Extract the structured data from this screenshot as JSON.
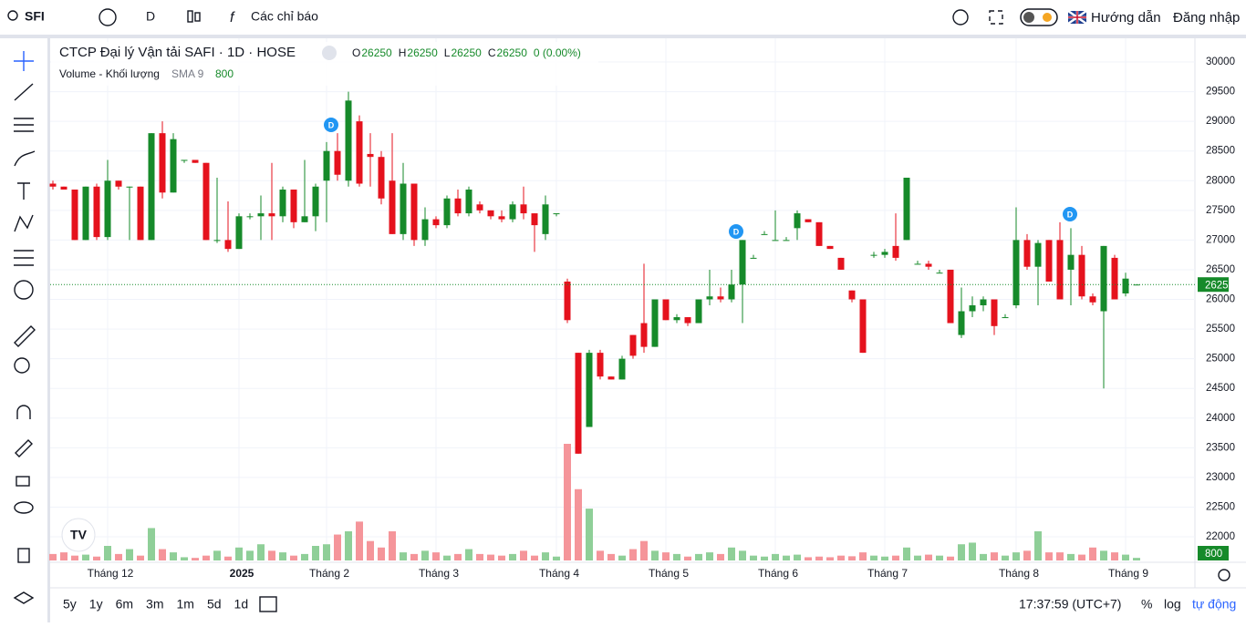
{
  "header": {
    "symbol": "SFI",
    "interval": "D",
    "indicators": "Các chỉ báo",
    "guide": "Hướng dẫn",
    "login": "Đăng nhập"
  },
  "chart_data": {
    "type": "candlestick",
    "title": "CTCP Đại lý Vận tải SAFI · 1D · HOSE",
    "ohlc_labels": [
      "O",
      "H",
      "L",
      "C"
    ],
    "change": "0 (0.00%)",
    "volume_title": "Volume - Khối lượng",
    "volume_sma": "SMA 9",
    "up_color": "#168a2a",
    "down_color": "#e5121d",
    "up_volume_color": "#8fcf98",
    "down_volume_color": "#f5959a",
    "events": [
      "D",
      "D",
      "D"
    ],
    "categories": [
      null,
      null,
      null,
      null,
      null,
      "Tháng 12",
      null,
      null,
      null,
      null,
      null,
      null,
      null,
      null,
      null,
      null,
      null,
      "2025",
      null,
      null,
      null,
      null,
      null,
      null,
      null,
      "Tháng 2",
      null,
      null,
      null,
      null,
      null,
      null,
      null,
      null,
      null,
      "Tháng 3",
      null,
      null,
      null,
      null,
      null,
      null,
      null,
      null,
      null,
      null,
      "Tháng 4",
      null,
      null,
      null,
      null,
      null,
      null,
      null,
      null,
      null,
      "Tháng 5",
      null,
      null,
      null,
      null,
      null,
      null,
      null,
      null,
      null,
      "Tháng 6",
      null,
      null,
      null,
      null,
      null,
      null,
      null,
      null,
      null,
      "Tháng 7",
      null,
      null,
      null,
      null,
      null,
      null,
      null,
      null,
      null,
      null,
      null,
      "Tháng 8",
      null,
      null,
      null,
      null,
      null,
      null,
      null,
      null,
      null,
      "Tháng 9",
      null
    ],
    "ohlc": [
      [
        27950,
        28000,
        27850,
        27900
      ],
      [
        27900,
        27900,
        27850,
        27850
      ],
      [
        27850,
        27850,
        27000,
        27000
      ],
      [
        27000,
        27900,
        27000,
        27900
      ],
      [
        27900,
        27950,
        27000,
        27050
      ],
      [
        27050,
        28350,
        27000,
        28000
      ],
      [
        28000,
        28000,
        27850,
        27900
      ],
      [
        27900,
        27900,
        27000,
        27900
      ],
      [
        27900,
        27900,
        27000,
        27000
      ],
      [
        27000,
        28800,
        27000,
        28800
      ],
      [
        28800,
        29000,
        27700,
        27800
      ],
      [
        27800,
        28800,
        27800,
        28700
      ],
      [
        28350,
        28350,
        28300,
        28350
      ],
      [
        28350,
        28350,
        28300,
        28300
      ],
      [
        28300,
        28300,
        27000,
        27000
      ],
      [
        27000,
        28050,
        26950,
        27000
      ],
      [
        27000,
        27650,
        26800,
        26850
      ],
      [
        26850,
        27450,
        26850,
        27400
      ],
      [
        27400,
        27450,
        27350,
        27400
      ],
      [
        27400,
        27750,
        27000,
        27450
      ],
      [
        27450,
        28300,
        27000,
        27400
      ],
      [
        27400,
        27900,
        27300,
        27850
      ],
      [
        27850,
        27850,
        27200,
        27300
      ],
      [
        27300,
        28350,
        27300,
        27400
      ],
      [
        27400,
        27950,
        27150,
        27900
      ],
      [
        28000,
        28650,
        27300,
        28500
      ],
      [
        28500,
        28800,
        28000,
        28100
      ],
      [
        28000,
        29500,
        27900,
        29350
      ],
      [
        29000,
        29100,
        27900,
        27950
      ],
      [
        28450,
        28800,
        27900,
        28400
      ],
      [
        28400,
        28500,
        27600,
        27700
      ],
      [
        28000,
        28800,
        27100,
        27100
      ],
      [
        27100,
        28300,
        27000,
        27950
      ],
      [
        27950,
        27950,
        26900,
        27000
      ],
      [
        27000,
        27550,
        26900,
        27350
      ],
      [
        27350,
        27400,
        27200,
        27250
      ],
      [
        27250,
        27750,
        27200,
        27700
      ],
      [
        27700,
        27850,
        27400,
        27450
      ],
      [
        27450,
        27900,
        27400,
        27850
      ],
      [
        27600,
        27650,
        27450,
        27500
      ],
      [
        27500,
        27500,
        27350,
        27400
      ],
      [
        27400,
        27500,
        27300,
        27350
      ],
      [
        27350,
        27650,
        27300,
        27600
      ],
      [
        27600,
        27900,
        27350,
        27450
      ],
      [
        27450,
        27450,
        26800,
        27250
      ],
      [
        27100,
        27750,
        27000,
        27600
      ],
      [
        27450,
        27450,
        27400,
        27450
      ],
      [
        26300,
        26350,
        25600,
        25650
      ],
      [
        25100,
        25100,
        23400,
        23400
      ],
      [
        23850,
        25150,
        23850,
        25100
      ],
      [
        25100,
        25150,
        24650,
        24700
      ],
      [
        24700,
        24700,
        24650,
        24650
      ],
      [
        24650,
        25050,
        24650,
        25000
      ],
      [
        25400,
        25400,
        25000,
        25050
      ],
      [
        25600,
        26600,
        25100,
        25200
      ],
      [
        25200,
        26000,
        25200,
        26000
      ],
      [
        26000,
        26000,
        25650,
        25650
      ],
      [
        25650,
        25750,
        25600,
        25700
      ],
      [
        25700,
        25700,
        25550,
        25600
      ],
      [
        25600,
        26000,
        25600,
        26000
      ],
      [
        26000,
        26500,
        25900,
        26050
      ],
      [
        26050,
        26200,
        25950,
        26000
      ],
      [
        26000,
        26500,
        25950,
        26250
      ],
      [
        26250,
        27000,
        25600,
        27000
      ],
      [
        26700,
        26750,
        26700,
        26700
      ],
      [
        27100,
        27150,
        27100,
        27100
      ],
      [
        27000,
        27500,
        27000,
        27000
      ],
      [
        27000,
        27050,
        27000,
        27000
      ],
      [
        27200,
        27500,
        27000,
        27450
      ],
      [
        27350,
        27350,
        27300,
        27300
      ],
      [
        27300,
        27300,
        26900,
        26900
      ],
      [
        26900,
        26900,
        26850,
        26850
      ],
      [
        26700,
        26700,
        26500,
        26500
      ],
      [
        26150,
        26150,
        25950,
        26000
      ],
      [
        26000,
        26000,
        25100,
        25100
      ],
      [
        26750,
        26800,
        26700,
        26750
      ],
      [
        26750,
        26850,
        26700,
        26800
      ],
      [
        26900,
        27450,
        26650,
        26700
      ],
      [
        27000,
        28050,
        27000,
        28050
      ],
      [
        26600,
        26650,
        26600,
        26600
      ],
      [
        26600,
        26650,
        26500,
        26550
      ],
      [
        26450,
        26500,
        26450,
        26450
      ],
      [
        26500,
        26500,
        25600,
        25600
      ],
      [
        25400,
        26200,
        25350,
        25800
      ],
      [
        25800,
        26050,
        25700,
        25900
      ],
      [
        25900,
        26050,
        25800,
        26000
      ],
      [
        26000,
        26000,
        25400,
        25550
      ],
      [
        25700,
        25750,
        25700,
        25700
      ],
      [
        25900,
        27550,
        25850,
        27000
      ],
      [
        27000,
        27100,
        26500,
        26550
      ],
      [
        26550,
        27000,
        25900,
        26950
      ],
      [
        27000,
        27000,
        26300,
        26300
      ],
      [
        27000,
        27300,
        26000,
        26000
      ],
      [
        26500,
        27200,
        25900,
        26750
      ],
      [
        26750,
        26900,
        26000,
        26050
      ],
      [
        26050,
        26100,
        25900,
        25950
      ],
      [
        25800,
        26900,
        24500,
        26900
      ],
      [
        26700,
        26750,
        26000,
        26000
      ],
      [
        26100,
        26450,
        26050,
        26350
      ],
      [
        26250,
        26250,
        26250,
        26250
      ]
    ],
    "volume": [
      2000,
      2500,
      1500,
      1800,
      1200,
      4500,
      2000,
      3500,
      1500,
      10000,
      3500,
      2500,
      1000,
      800,
      1500,
      3000,
      1200,
      4000,
      3000,
      5000,
      3000,
      2500,
      1500,
      2000,
      4500,
      5000,
      8000,
      9000,
      12000,
      6000,
      4000,
      9000,
      2500,
      2000,
      3000,
      2500,
      1500,
      2000,
      3500,
      2000,
      1800,
      1500,
      2000,
      3000,
      1500,
      2500,
      1200,
      36000,
      22000,
      16000,
      3000,
      2000,
      1500,
      3500,
      6000,
      3000,
      2500,
      2000,
      1200,
      2000,
      2500,
      2000,
      4000,
      3000,
      1500,
      1200,
      2000,
      1500,
      1800,
      1000,
      1200,
      1000,
      1500,
      1300,
      2500,
      1500,
      1200,
      1500,
      4000,
      1500,
      1800,
      1500,
      1200,
      5000,
      5500,
      2000,
      2500,
      1500,
      2500,
      3000,
      9000,
      2500,
      2500,
      2000,
      1800,
      4000,
      3000,
      2500,
      1800,
      800
    ],
    "ylim": [
      21700,
      30250
    ],
    "vlim": [
      0,
      45000
    ],
    "yticks": [
      22000,
      22500,
      23000,
      23500,
      24000,
      24500,
      25000,
      25500,
      26000,
      26500,
      27000,
      27500,
      28000,
      28500,
      29000,
      29500,
      30000
    ]
  },
  "footer": {
    "ranges": [
      "5y",
      "1y",
      "6m",
      "3m",
      "1m",
      "5d",
      "1d"
    ],
    "clock": "17:37:59 (UTC+7)",
    "scales": [
      "%",
      "log",
      "tự động"
    ]
  }
}
